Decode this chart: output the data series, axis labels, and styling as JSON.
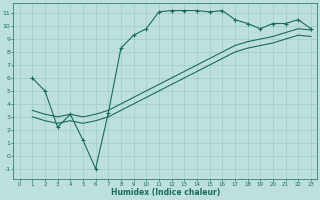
{
  "xlabel": "Humidex (Indice chaleur)",
  "bg_color": "#bde0de",
  "grid_color": "#96c8c6",
  "line_color": "#1a6b5a",
  "xlim": [
    -0.5,
    23.5
  ],
  "ylim": [
    -1.8,
    11.8
  ],
  "xticks": [
    0,
    1,
    2,
    3,
    4,
    5,
    6,
    7,
    8,
    9,
    10,
    11,
    12,
    13,
    14,
    15,
    16,
    17,
    18,
    19,
    20,
    21,
    22,
    23
  ],
  "yticks": [
    -1,
    0,
    1,
    2,
    3,
    4,
    5,
    6,
    7,
    8,
    9,
    10,
    11
  ],
  "line1_x": [
    1,
    2,
    3,
    4,
    5,
    6,
    7,
    8,
    9,
    10,
    11,
    12,
    13,
    14,
    15,
    16,
    17,
    18,
    19,
    20,
    21,
    22,
    23
  ],
  "line1_y": [
    6.0,
    5.0,
    2.2,
    3.2,
    1.2,
    -1.0,
    3.3,
    8.3,
    9.3,
    9.8,
    11.1,
    11.2,
    11.2,
    11.2,
    11.1,
    11.2,
    10.5,
    10.2,
    9.8,
    10.2,
    10.2,
    10.5,
    9.8
  ],
  "line2_x": [
    1,
    2,
    3,
    4,
    5,
    6,
    7,
    8,
    9,
    10,
    11,
    12,
    13,
    14,
    15,
    16,
    17,
    18,
    19,
    20,
    21,
    22,
    23
  ],
  "line2_y": [
    3.5,
    3.2,
    3.0,
    3.2,
    3.0,
    3.2,
    3.5,
    4.0,
    4.5,
    5.0,
    5.5,
    6.0,
    6.5,
    7.0,
    7.5,
    8.0,
    8.5,
    8.8,
    9.0,
    9.2,
    9.5,
    9.8,
    9.7
  ],
  "line3_x": [
    1,
    2,
    3,
    4,
    5,
    6,
    7,
    8,
    9,
    10,
    11,
    12,
    13,
    14,
    15,
    16,
    17,
    18,
    19,
    20,
    21,
    22,
    23
  ],
  "line3_y": [
    3.0,
    2.7,
    2.5,
    2.7,
    2.5,
    2.7,
    3.0,
    3.5,
    4.0,
    4.5,
    5.0,
    5.5,
    6.0,
    6.5,
    7.0,
    7.5,
    8.0,
    8.3,
    8.5,
    8.7,
    9.0,
    9.3,
    9.2
  ]
}
